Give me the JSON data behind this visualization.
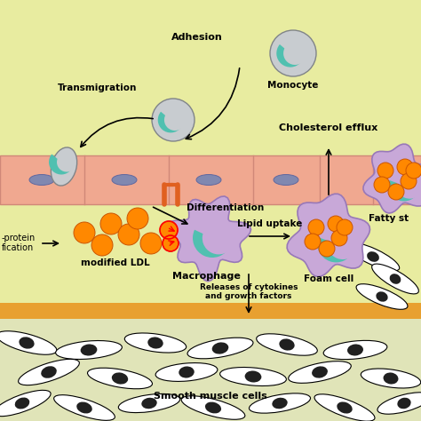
{
  "bg_color": "#e8eca0",
  "vessel_color": "#f0a890",
  "vessel_border": "#d08878",
  "stripe_color": "#e8a030",
  "sm_bg_color": "#e0e4b8",
  "orange_color": "#ff8800",
  "orange_border": "#cc5500",
  "purple_color": "#c8a8d8",
  "purple_border": "#9878b8",
  "gray_cell_color": "#c8ccd0",
  "gray_cell_border": "#909498",
  "teal_color": "#50c0b0",
  "nucleus_color": "#8088b0",
  "nucleus_border": "#6068a0",
  "labels": {
    "adhesion": "Adhesion",
    "transmigration": "Transmigration",
    "monocyte": "Monocyte",
    "cholesterol": "Cholesterol efflux",
    "differentiation": "Differentiation",
    "lipoprotein1": "-protein",
    "lipoprotein2": "fication",
    "modified_ldl": "modified LDL",
    "macrophage": "Macrophage",
    "lipid_uptake": "Lipid uptake",
    "foam_cell": "Foam cell",
    "releases": "Releases of cytokines\nand growth factors",
    "fatty": "Fatty st",
    "smooth": "Smooth muscle cells"
  }
}
